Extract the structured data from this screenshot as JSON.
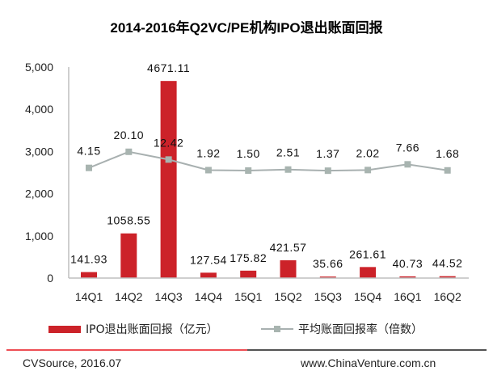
{
  "colors": {
    "bar": "#cc2229",
    "line": "#a8b0b0",
    "marker": "#a8b4b0",
    "axis": "#bfbfbf",
    "rule_left": "#e8141c",
    "rule_right": "#1a1a1a"
  },
  "footer": {
    "source": "CVSource, 2016.07",
    "website": "www.ChinaVenture.com.cn"
  },
  "chart_data": {
    "type": "bar+line",
    "title": "2014-2016年Q2VC/PE机构IPO退出账面回报",
    "categories": [
      "14Q1",
      "14Q2",
      "14Q3",
      "14Q4",
      "15Q1",
      "15Q2",
      "15Q3",
      "15Q4",
      "16Q1",
      "16Q2"
    ],
    "series": [
      {
        "name": "IPO退出账面回报（亿元）",
        "type": "bar",
        "axis": "primary",
        "values": [
          141.93,
          1058.55,
          4671.11,
          127.54,
          175.82,
          421.57,
          35.66,
          261.61,
          40.73,
          44.52
        ],
        "labels": [
          "141.93",
          "1058.55",
          "4671.11",
          "127.54",
          "175.82",
          "421.57",
          "35.66",
          "261.61",
          "40.73",
          "44.52"
        ]
      },
      {
        "name": "平均账面回报率（倍数）",
        "type": "line",
        "axis": "secondary",
        "values": [
          4.15,
          20.1,
          12.42,
          1.92,
          1.5,
          2.51,
          1.37,
          2.02,
          7.66,
          1.68
        ],
        "labels": [
          "4.15",
          "20.10",
          "12.42",
          "1.92",
          "1.50",
          "2.51",
          "1.37",
          "2.02",
          "7.66",
          "1.68"
        ]
      }
    ],
    "ylim": [
      0,
      5000
    ],
    "y2lim": [
      -105,
      104
    ],
    "yticks": [
      0,
      1000,
      2000,
      3000,
      4000,
      5000
    ],
    "ytick_labels": [
      "0",
      "1,000",
      "2,000",
      "3,000",
      "4,000",
      "5,000"
    ],
    "grid": false,
    "legend": "bottom"
  }
}
